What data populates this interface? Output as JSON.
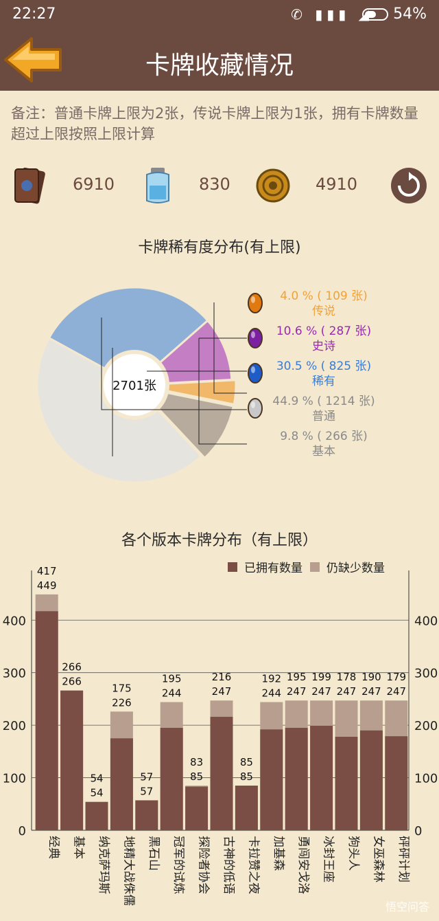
{
  "status": {
    "time": "22:27",
    "battery": "54%"
  },
  "header": {
    "title": "卡牌收藏情况"
  },
  "note": "备注：普通卡牌上限为2张，传说卡牌上限为1张，拥有卡牌数量超过上限按照上限计算",
  "resources": {
    "packs": "6910",
    "dust": "830",
    "gold": "4910"
  },
  "pie": {
    "title": "卡牌稀有度分布(有上限)",
    "center_label": "2701张",
    "slices": [
      {
        "label": "4.0 % ( 109 张)",
        "name": "传说",
        "value": 4.0,
        "color": "#f2b86a",
        "text_color": "#f0a23a"
      },
      {
        "label": "10.6 % ( 287 张)",
        "name": "史诗",
        "value": 10.6,
        "color": "#c47fc4",
        "text_color": "#9a2ab0"
      },
      {
        "label": "30.5 % ( 825 张)",
        "name": "稀有",
        "value": 30.5,
        "color": "#8fb0d6",
        "text_color": "#3a7cd6"
      },
      {
        "label": "44.9 % ( 1214 张)",
        "name": "普通",
        "value": 44.9,
        "color": "#e6e4df",
        "text_color": "#8a8a8a"
      },
      {
        "label": "9.8 % ( 266 张)",
        "name": "基本",
        "value": 9.8,
        "color": "#b6ab9c",
        "text_color": "#8a8a8a"
      }
    ]
  },
  "chart_data": {
    "type": "bar",
    "title": "各个版本卡牌分布（有上限）",
    "categories": [
      "经典",
      "基本",
      "纳克萨玛斯",
      "地精大战侏儒",
      "黑石山",
      "冠军的试炼",
      "探险者协会",
      "古神的低语",
      "卡拉赞之夜",
      "加基森",
      "勇闯安戈洛",
      "冰封王座",
      "狗头人",
      "女巫森林",
      "砰砰计划"
    ],
    "series": [
      {
        "name": "已拥有数量",
        "color": "#7a4e45",
        "values": [
          417,
          266,
          54,
          175,
          57,
          195,
          83,
          216,
          85,
          192,
          195,
          199,
          178,
          190,
          179
        ]
      },
      {
        "name": "仍缺少数量",
        "color": "#b89e8f",
        "values": [
          32,
          0,
          0,
          51,
          0,
          49,
          2,
          31,
          0,
          52,
          52,
          48,
          69,
          57,
          68
        ]
      }
    ],
    "totals": [
      449,
      266,
      54,
      226,
      57,
      244,
      85,
      247,
      85,
      244,
      247,
      247,
      247,
      247,
      247
    ],
    "ylim": [
      0,
      450
    ],
    "yticks": [
      0,
      100,
      200,
      300,
      400
    ],
    "legend": "top-right",
    "grid": true
  },
  "watermark": "悟空问答"
}
